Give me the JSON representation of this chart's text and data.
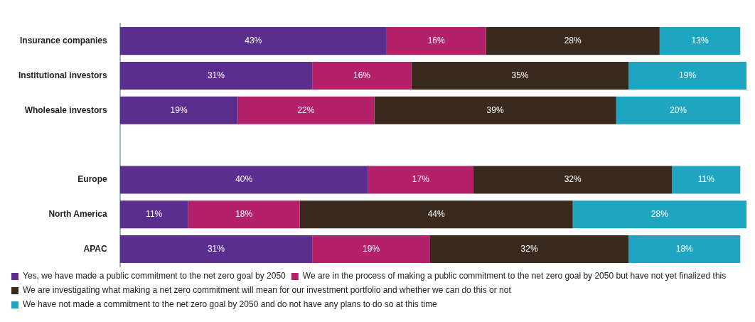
{
  "chart_data": {
    "type": "bar",
    "orientation": "horizontal",
    "stacked": true,
    "tick_labels": "y",
    "grid": false,
    "legend": "bottom left",
    "categories": [
      "Insurance companies",
      "Institutional investors",
      "Wholesale investors",
      null,
      "Europe",
      "North America",
      "APAC"
    ],
    "series": [
      {
        "name": "Yes, we have made a public commitment to the net zero goal by 2050",
        "color": "#5b2d8e",
        "values": [
          43,
          31,
          19,
          null,
          40,
          11,
          31
        ],
        "value_labels": [
          "43%",
          "31%",
          "19%",
          null,
          "40%",
          "11%",
          "31%"
        ]
      },
      {
        "name": "We are in the process of making a public commitment to the net zero goal by 2050 but have not yet finalized this",
        "color": "#b5206b",
        "values": [
          16,
          16,
          22,
          null,
          17,
          18,
          19
        ],
        "value_labels": [
          "16%",
          "16%",
          "22%",
          null,
          "17%",
          "18%",
          "19%"
        ]
      },
      {
        "name": "We are investigating what making a net zero commitment will mean for our investment portfolio and whether we can do this or not",
        "color": "#3a2a1e",
        "values": [
          28,
          35,
          39,
          null,
          32,
          44,
          32
        ],
        "value_labels": [
          "28%",
          "35%",
          "39%",
          null,
          "32%",
          "44%",
          "32%"
        ]
      },
      {
        "name": "We have not made a commitment to the net zero goal by 2050 and do not have any plans to do so at this time",
        "color": "#1ea5bf",
        "values": [
          13,
          19,
          20,
          null,
          11,
          28,
          18
        ],
        "value_labels": [
          "13%",
          "19%",
          "20%",
          null,
          "11%",
          "28%",
          "18%"
        ]
      }
    ]
  }
}
